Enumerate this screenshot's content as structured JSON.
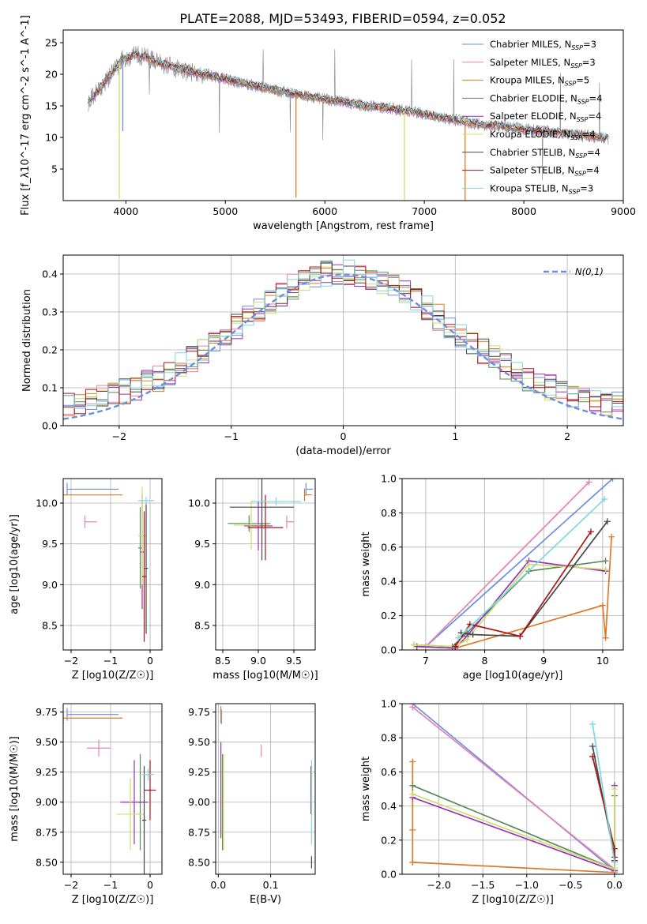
{
  "title": "PLATE=2088, MJD=53493, FIBERID=0594, z=0.052",
  "colors": [
    "#6a8fdb",
    "#e681b5",
    "#dd7a28",
    "#5a8a5a",
    "#9b2fb8",
    "#c8e06a",
    "#474747",
    "#a81616",
    "#7fd7e0"
  ],
  "models": [
    {
      "label": "Chabrier MILES, N_SSP=3",
      "color": "#6a8fdb"
    },
    {
      "label": "Salpeter MILES, N_SSP=3",
      "color": "#e681b5"
    },
    {
      "label": "Kroupa MILES, N_SSP=5",
      "color": "#dd7a28"
    },
    {
      "label": "Chabrier ELODIE, N_SSP=4",
      "color": "#5a8a5a"
    },
    {
      "label": "Salpeter ELODIE, N_SSP=4",
      "color": "#9b2fb8"
    },
    {
      "label": "Kroupa ELODIE, N_SSP=4",
      "color": "#c8e06a"
    },
    {
      "label": "Chabrier STELIB, N_SSP=4",
      "color": "#474747"
    },
    {
      "label": "Salpeter STELIB, N_SSP=4",
      "color": "#a81616"
    },
    {
      "label": "Kroupa STELIB, N_SSP=3",
      "color": "#7fd7e0"
    }
  ],
  "chart_data": [
    {
      "id": "spectrum",
      "type": "line",
      "xlabel": "wavelength [Angstrom, rest frame]",
      "ylabel": "Flux [f_λ10^-17 erg cm^-2 s^-1 A^-1]",
      "xlim": [
        3370,
        9000
      ],
      "ylim": [
        0,
        27
      ],
      "xticks": [
        4000,
        5000,
        6000,
        7000,
        8000,
        9000
      ],
      "yticks": [
        5,
        10,
        15,
        20,
        25
      ],
      "continuum": {
        "x": [
          3620,
          3700,
          3800,
          3900,
          3950,
          4000,
          4100,
          4200,
          4300,
          4400,
          4500,
          4600,
          4800,
          5000,
          5200,
          5400,
          5600,
          5800,
          6000,
          6200,
          6400,
          6600,
          6800,
          7000,
          7200,
          7400,
          7600,
          7800,
          8000,
          8200,
          8400,
          8600,
          8800,
          8850
        ],
        "y": [
          15.5,
          17.0,
          19.0,
          21.0,
          22.3,
          22.5,
          23.0,
          22.8,
          22.0,
          21.5,
          21.0,
          20.6,
          20.0,
          19.2,
          18.5,
          17.8,
          17.2,
          16.6,
          16.0,
          15.6,
          15.0,
          14.7,
          14.2,
          13.7,
          13.0,
          12.5,
          12.0,
          11.7,
          11.3,
          11.0,
          10.6,
          10.3,
          10.0,
          9.8
        ]
      },
      "absorption_dips": [
        {
          "x": 3934,
          "y": 0.3
        },
        {
          "x": 3969,
          "y": 11.0
        },
        {
          "x": 5710,
          "y": 0.5
        },
        {
          "x": 6800,
          "y": 0.0
        },
        {
          "x": 7410,
          "y": 0.0
        }
      ]
    },
    {
      "id": "residuals",
      "type": "step",
      "xlabel": "(data-model)/error",
      "ylabel": "Normed distribution",
      "xlim": [
        -2.5,
        2.5
      ],
      "ylim": [
        0,
        0.45
      ],
      "xticks": [
        -2,
        -1,
        0,
        1,
        2
      ],
      "yticks": [
        0.0,
        0.1,
        0.2,
        0.3,
        0.4
      ],
      "legend": "N(0,1)",
      "gaussian": {
        "mean": 0,
        "sigma": 1
      }
    },
    {
      "id": "age-vs-Z",
      "type": "errorbar",
      "xlabel": "Z [log10(Z/Z☉)]",
      "ylabel": "age [log10(age/yr)]",
      "xlim": [
        -2.2,
        0.3
      ],
      "ylim": [
        8.2,
        10.3
      ],
      "xticks": [
        -2,
        -1,
        0
      ],
      "yticks": [
        8.5,
        9.0,
        9.5,
        10.0
      ],
      "points": [
        {
          "x": -1.45,
          "xerr": [
            0.65,
            0.65
          ],
          "y": 10.17,
          "yerr": [
            0,
            0
          ]
        },
        {
          "x": -1.5,
          "xerr": [
            0.15,
            0.15
          ],
          "y": 9.77,
          "yerr": [
            0,
            0
          ]
        },
        {
          "x": -1.45,
          "xerr": [
            0.75,
            0.75
          ],
          "y": 10.1,
          "yerr": [
            0,
            0
          ]
        },
        {
          "x": -0.25,
          "xerr": [
            0.05,
            0.05
          ],
          "y": 9.45,
          "yerr": [
            0.5,
            0.5
          ]
        },
        {
          "x": -0.2,
          "xerr": [
            0.05,
            0.05
          ],
          "y": 9.4,
          "yerr": [
            0.7,
            0.7
          ]
        },
        {
          "x": -0.2,
          "xerr": [
            0.1,
            0.1
          ],
          "y": 9.6,
          "yerr": [
            0.6,
            0.6
          ]
        },
        {
          "x": -0.1,
          "xerr": [
            0.05,
            0.05
          ],
          "y": 9.2,
          "yerr": [
            0.8,
            0.8
          ]
        },
        {
          "x": -0.15,
          "xerr": [
            0.05,
            0.05
          ],
          "y": 9.1,
          "yerr": [
            0.8,
            0.8
          ]
        },
        {
          "x": -0.1,
          "xerr": [
            0.2,
            0.2
          ],
          "y": 10.03,
          "yerr": [
            0.05,
            0.05
          ]
        }
      ]
    },
    {
      "id": "age-vs-mass",
      "type": "errorbar",
      "xlabel": "mass [log10(M/M☉)]",
      "ylabel": "",
      "xlim": [
        8.4,
        9.8
      ],
      "ylim": [
        8.2,
        10.3
      ],
      "xticks": [
        8.5,
        9.0,
        9.5
      ],
      "yticks": [
        8.5,
        9.0,
        9.5,
        10.0
      ],
      "points": [
        {
          "x": 9.72,
          "xerr": [
            0.05,
            0.05
          ],
          "y": 10.17,
          "yerr": [
            0,
            0
          ]
        },
        {
          "x": 9.45,
          "xerr": [
            0.05,
            0.05
          ],
          "y": 9.77,
          "yerr": [
            0,
            0
          ]
        },
        {
          "x": 9.7,
          "xerr": [
            0.05,
            0.05
          ],
          "y": 10.1,
          "yerr": [
            0,
            0
          ]
        },
        {
          "x": 8.87,
          "xerr": [
            0.3,
            0.3
          ],
          "y": 9.75,
          "yerr": [
            0.1,
            0.1
          ]
        },
        {
          "x": 9.0,
          "xerr": [
            0.2,
            0.2
          ],
          "y": 9.72,
          "yerr": [
            0.3,
            0.3
          ]
        },
        {
          "x": 8.9,
          "xerr": [
            0.25,
            0.25
          ],
          "y": 9.73,
          "yerr": [
            0.3,
            0.3
          ]
        },
        {
          "x": 9.05,
          "xerr": [
            0.45,
            0.45
          ],
          "y": 9.95,
          "yerr": [
            0.65,
            0.65
          ]
        },
        {
          "x": 9.1,
          "xerr": [
            0.25,
            0.25
          ],
          "y": 9.7,
          "yerr": [
            0.4,
            0.4
          ]
        },
        {
          "x": 9.25,
          "xerr": [
            0.35,
            0.35
          ],
          "y": 10.02,
          "yerr": [
            0.05,
            0.05
          ]
        }
      ]
    },
    {
      "id": "mass-weight-vs-age",
      "type": "line",
      "xlabel": "age [log10(age/yr)]",
      "ylabel": "mass weight",
      "xlim": [
        6.6,
        10.35
      ],
      "ylim": [
        0,
        1
      ],
      "xticks": [
        7,
        8,
        9,
        10
      ],
      "yticks": [
        0.0,
        0.2,
        0.4,
        0.6,
        0.8,
        1.0
      ],
      "series": [
        {
          "x": [
            7.0,
            10.17
          ],
          "y": [
            0.02,
            1.0
          ]
        },
        {
          "x": [
            7.0,
            9.77
          ],
          "y": [
            0.02,
            0.98
          ]
        },
        {
          "x": [
            6.85,
            7.5,
            10.0,
            10.05,
            10.15
          ],
          "y": [
            0.02,
            0.01,
            0.26,
            0.07,
            0.66
          ]
        },
        {
          "x": [
            6.8,
            7.45,
            7.7,
            8.75,
            10.05
          ],
          "y": [
            0.03,
            0.02,
            0.1,
            0.46,
            0.52
          ]
        },
        {
          "x": [
            6.85,
            7.5,
            7.7,
            8.75,
            10.05
          ],
          "y": [
            0.02,
            0.01,
            0.08,
            0.52,
            0.46
          ]
        },
        {
          "x": [
            6.8,
            7.5,
            7.7,
            8.75,
            10.05
          ],
          "y": [
            0.03,
            0.02,
            0.06,
            0.5,
            0.47
          ]
        },
        {
          "x": [
            7.6,
            7.8,
            8.6,
            10.08
          ],
          "y": [
            0.1,
            0.09,
            0.08,
            0.75
          ]
        },
        {
          "x": [
            7.5,
            7.75,
            8.6,
            9.8
          ],
          "y": [
            0.02,
            0.15,
            0.08,
            0.69
          ]
        },
        {
          "x": [
            7.55,
            10.03
          ],
          "y": [
            0.07,
            0.88
          ]
        }
      ]
    },
    {
      "id": "mass-vs-Z",
      "type": "errorbar",
      "xlabel": "Z [log10(Z/Z☉)]",
      "ylabel": "mass [log10(M/M☉)]",
      "xlim": [
        -2.2,
        0.3
      ],
      "ylim": [
        8.4,
        9.82
      ],
      "xticks": [
        -2,
        -1,
        0
      ],
      "yticks": [
        8.5,
        8.75,
        9.0,
        9.25,
        9.5,
        9.75
      ],
      "points": [
        {
          "x": -1.45,
          "xerr": [
            0.65,
            0.65
          ],
          "y": 9.73,
          "yerr": [
            0,
            0
          ]
        },
        {
          "x": -1.3,
          "xerr": [
            0.3,
            0.3
          ],
          "y": 9.45,
          "yerr": [
            0.07,
            0.07
          ]
        },
        {
          "x": -1.45,
          "xerr": [
            0.75,
            0.75
          ],
          "y": 9.7,
          "yerr": [
            0,
            0
          ]
        },
        {
          "x": -0.25,
          "xerr": [
            0.05,
            0.05
          ],
          "y": 9.0,
          "yerr": [
            0.4,
            0.4
          ]
        },
        {
          "x": -0.4,
          "xerr": [
            0.35,
            0.35
          ],
          "y": 9.0,
          "yerr": [
            0.35,
            0.35
          ]
        },
        {
          "x": -0.5,
          "xerr": [
            0.35,
            0.35
          ],
          "y": 8.9,
          "yerr": [
            0.3,
            0.3
          ]
        },
        {
          "x": -0.15,
          "xerr": [
            0.05,
            0.05
          ],
          "y": 8.85,
          "yerr": [
            0.45,
            0.45
          ]
        },
        {
          "x": 0.0,
          "xerr": [
            0.15,
            0.15
          ],
          "y": 9.1,
          "yerr": [
            0.25,
            0.25
          ]
        },
        {
          "x": -0.05,
          "xerr": [
            0.15,
            0.15
          ],
          "y": 9.23,
          "yerr": [
            0.05,
            0.05
          ]
        }
      ]
    },
    {
      "id": "mass-vs-EBV",
      "type": "errorbar",
      "xlabel": "E(B-V)",
      "ylabel": "",
      "xlim": [
        -0.005,
        0.185
      ],
      "ylim": [
        8.4,
        9.82
      ],
      "xticks": [
        0.0,
        0.1
      ],
      "yticks": [
        8.5,
        8.75,
        9.0,
        9.25,
        9.5,
        9.75
      ],
      "points": [
        {
          "x": 0.005,
          "xerr": [
            0,
            0
          ],
          "y": 9.73,
          "yerr": [
            0.07,
            0.07
          ]
        },
        {
          "x": 0.082,
          "xerr": [
            0,
            0
          ],
          "y": 9.43,
          "yerr": [
            0.05,
            0.05
          ]
        },
        {
          "x": 0.006,
          "xerr": [
            0,
            0
          ],
          "y": 9.71,
          "yerr": [
            0.06,
            0.06
          ]
        },
        {
          "x": 0.008,
          "xerr": [
            0,
            0
          ],
          "y": 9.0,
          "yerr": [
            0.4,
            0.4
          ]
        },
        {
          "x": 0.005,
          "xerr": [
            0,
            0
          ],
          "y": 9.1,
          "yerr": [
            0.4,
            0.4
          ]
        },
        {
          "x": 0.01,
          "xerr": [
            0,
            0
          ],
          "y": 9.0,
          "yerr": [
            0.4,
            0.4
          ]
        },
        {
          "x": 0.178,
          "xerr": [
            0,
            0
          ],
          "y": 8.5,
          "yerr": [
            0.05,
            0.05
          ]
        },
        {
          "x": 0.177,
          "xerr": [
            0,
            0
          ],
          "y": 9.1,
          "yerr": [
            0.2,
            0.2
          ]
        },
        {
          "x": 0.178,
          "xerr": [
            0,
            0
          ],
          "y": 9.0,
          "yerr": [
            0.35,
            0.35
          ]
        }
      ]
    },
    {
      "id": "mass-weight-vs-Z",
      "type": "line",
      "xlabel": "Z [log10(Z/Z☉)]",
      "ylabel": "mass weight",
      "xlim": [
        -2.42,
        0.1
      ],
      "ylim": [
        0,
        1
      ],
      "xticks": [
        -2.0,
        -1.5,
        -1.0,
        -0.5,
        0.0
      ],
      "yticks": [
        0.0,
        0.2,
        0.4,
        0.6,
        0.8,
        1.0
      ],
      "series": [
        {
          "x": [
            -2.3,
            0.0
          ],
          "y": [
            1.0,
            0.02
          ]
        },
        {
          "x": [
            -2.3,
            0.0
          ],
          "y": [
            0.98,
            0.03
          ]
        },
        {
          "x": [
            -2.3,
            -2.3,
            -2.3,
            -2.3,
            0.0
          ],
          "y": [
            0.66,
            0.26,
            0.07,
            0.07,
            0.01
          ]
        },
        {
          "x": [
            -2.3,
            0.0,
            0.0
          ],
          "y": [
            0.52,
            0.03,
            0.46
          ]
        },
        {
          "x": [
            -2.3,
            0.0,
            0.0
          ],
          "y": [
            0.45,
            0.02,
            0.52
          ]
        },
        {
          "x": [
            -2.3,
            0.0,
            0.0
          ],
          "y": [
            0.47,
            0.03,
            0.5
          ]
        },
        {
          "x": [
            -0.25,
            0.0,
            0.0
          ],
          "y": [
            0.75,
            0.1,
            0.08
          ]
        },
        {
          "x": [
            -0.25,
            0.0,
            0.0
          ],
          "y": [
            0.69,
            0.15,
            0.08
          ]
        },
        {
          "x": [
            -0.25,
            0.0
          ],
          "y": [
            0.88,
            0.07
          ]
        }
      ]
    }
  ]
}
